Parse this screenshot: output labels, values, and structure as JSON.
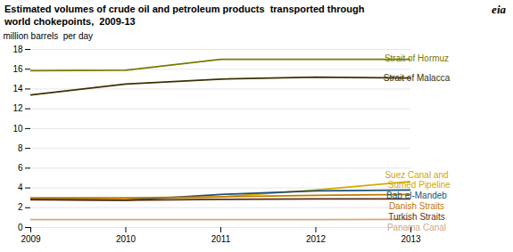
{
  "chart_data": {
    "type": "line",
    "title": "Estimated volumes of crude oil and petroleum products  transported through\nworld chokepoints,  2009-13",
    "ylabel": "million barrels  per day",
    "annotations": [
      "eia"
    ],
    "x": [
      2009,
      2010,
      2011,
      2012,
      2013
    ],
    "xlim": [
      2009,
      2013
    ],
    "xticks": [
      2009,
      2010,
      2011,
      2012,
      2013
    ],
    "ylim": [
      0,
      18
    ],
    "yticks": [
      0,
      2,
      4,
      6,
      8,
      10,
      12,
      14,
      16,
      18
    ],
    "grid": true,
    "series": [
      {
        "name": "Strait of Hormuz",
        "color": "#787800",
        "values": [
          15.85,
          15.9,
          17.0,
          17.0,
          17.0
        ]
      },
      {
        "name": "Strait of Malacca",
        "color": "#3b3000",
        "values": [
          13.4,
          14.5,
          15.0,
          15.2,
          15.1
        ]
      },
      {
        "name": "Suez Canal and\n  Sumed Pipeline",
        "color": "#d4a800",
        "values": [
          2.9,
          2.9,
          3.1,
          3.8,
          4.65
        ]
      },
      {
        "name": "Bab el-Mandeb",
        "color": "#1a5276",
        "values": [
          2.85,
          2.75,
          3.35,
          3.7,
          3.8
        ]
      },
      {
        "name": "Danish Straits",
        "color": "#c87800",
        "values": [
          3.0,
          3.0,
          3.1,
          3.25,
          3.35
        ]
      },
      {
        "name": "Turkish Straits",
        "color": "#5a3010",
        "values": [
          2.8,
          2.75,
          2.85,
          2.9,
          2.9
        ]
      },
      {
        "name": "Panama Canal",
        "color": "#d4a880",
        "values": [
          0.8,
          0.8,
          0.8,
          0.8,
          0.82
        ]
      }
    ]
  }
}
